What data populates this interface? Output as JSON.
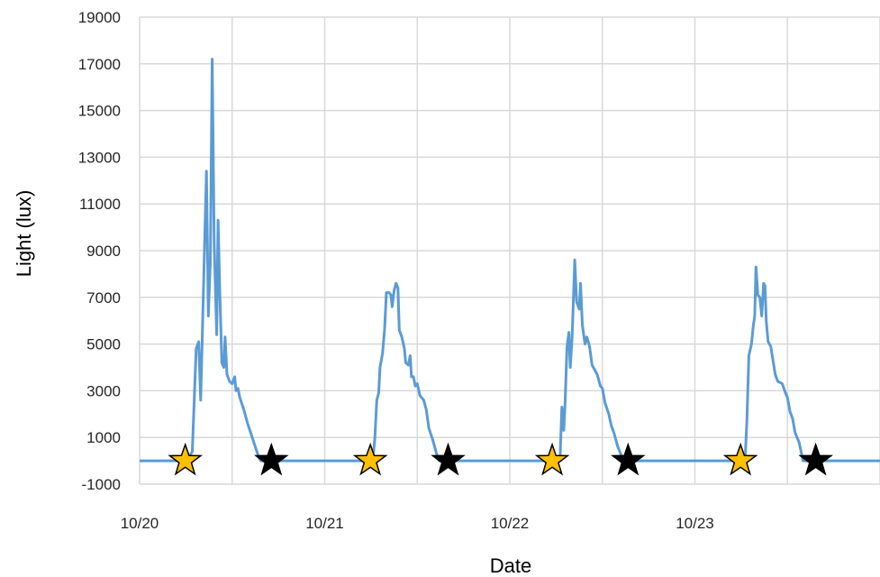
{
  "chart_data": {
    "type": "line",
    "title": "",
    "xlabel": "Date",
    "ylabel": "Light (lux)",
    "ylim": [
      -1000,
      19000
    ],
    "y_ticks": [
      -1000,
      1000,
      3000,
      5000,
      7000,
      9000,
      11000,
      13000,
      15000,
      17000,
      19000
    ],
    "x_range": [
      "2023-10-20T00:00",
      "2023-10-24T00:00"
    ],
    "x_tick_labels": [
      {
        "date": "2023-10-20T00:00",
        "label": "10/20"
      },
      {
        "date": "2023-10-21T00:00",
        "label": "10/21"
      },
      {
        "date": "2023-10-22T00:00",
        "label": "10/22"
      },
      {
        "date": "2023-10-23T00:00",
        "label": "10/23"
      }
    ],
    "grid": true,
    "colors": {
      "line": "#5b9bd5",
      "grid": "#d9d9d9",
      "sunrise_star": "#ffc000",
      "sunset_star": "#000000"
    },
    "series": [
      {
        "points": [
          [
            "2023-10-20T00:00",
            0
          ],
          [
            "2023-10-20T06:10",
            0
          ],
          [
            "2023-10-20T06:50",
            400
          ],
          [
            "2023-10-20T07:20",
            4800
          ],
          [
            "2023-10-20T07:40",
            5100
          ],
          [
            "2023-10-20T07:55",
            2600
          ],
          [
            "2023-10-20T08:40",
            12400
          ],
          [
            "2023-10-20T08:55",
            6200
          ],
          [
            "2023-10-20T09:10",
            8500
          ],
          [
            "2023-10-20T09:25",
            17200
          ],
          [
            "2023-10-20T09:40",
            9300
          ],
          [
            "2023-10-20T10:00",
            5400
          ],
          [
            "2023-10-20T10:10",
            10300
          ],
          [
            "2023-10-20T10:25",
            7000
          ],
          [
            "2023-10-20T10:40",
            4200
          ],
          [
            "2023-10-20T10:55",
            4000
          ],
          [
            "2023-10-20T11:05",
            5300
          ],
          [
            "2023-10-20T11:20",
            3700
          ],
          [
            "2023-10-20T11:40",
            3400
          ],
          [
            "2023-10-20T12:00",
            3300
          ],
          [
            "2023-10-20T12:20",
            3600
          ],
          [
            "2023-10-20T12:30",
            3000
          ],
          [
            "2023-10-20T12:45",
            3100
          ],
          [
            "2023-10-20T13:00",
            2700
          ],
          [
            "2023-10-20T13:30",
            2200
          ],
          [
            "2023-10-20T14:00",
            1600
          ],
          [
            "2023-10-20T14:30",
            1100
          ],
          [
            "2023-10-20T15:00",
            600
          ],
          [
            "2023-10-20T15:30",
            100
          ],
          [
            "2023-10-20T15:45",
            0
          ],
          [
            "2023-10-21T06:15",
            0
          ],
          [
            "2023-10-21T06:30",
            1000
          ],
          [
            "2023-10-21T06:45",
            2600
          ],
          [
            "2023-10-21T07:00",
            2900
          ],
          [
            "2023-10-21T07:10",
            4000
          ],
          [
            "2023-10-21T07:30",
            4600
          ],
          [
            "2023-10-21T07:45",
            5600
          ],
          [
            "2023-10-21T08:00",
            7200
          ],
          [
            "2023-10-21T08:20",
            7200
          ],
          [
            "2023-10-21T08:35",
            7100
          ],
          [
            "2023-10-21T08:45",
            6600
          ],
          [
            "2023-10-21T09:00",
            7300
          ],
          [
            "2023-10-21T09:15",
            7600
          ],
          [
            "2023-10-21T09:30",
            7400
          ],
          [
            "2023-10-21T09:40",
            5600
          ],
          [
            "2023-10-21T10:00",
            5300
          ],
          [
            "2023-10-21T10:20",
            4800
          ],
          [
            "2023-10-21T10:30",
            4200
          ],
          [
            "2023-10-21T10:50",
            4100
          ],
          [
            "2023-10-21T11:05",
            4500
          ],
          [
            "2023-10-21T11:15",
            3600
          ],
          [
            "2023-10-21T11:30",
            3600
          ],
          [
            "2023-10-21T11:45",
            3200
          ],
          [
            "2023-10-21T12:00",
            3300
          ],
          [
            "2023-10-21T12:20",
            2800
          ],
          [
            "2023-10-21T12:50",
            2600
          ],
          [
            "2023-10-21T13:10",
            2200
          ],
          [
            "2023-10-21T13:30",
            1400
          ],
          [
            "2023-10-21T14:00",
            900
          ],
          [
            "2023-10-21T14:30",
            300
          ],
          [
            "2023-10-21T14:50",
            0
          ],
          [
            "2023-10-22T06:30",
            0
          ],
          [
            "2023-10-22T06:45",
            2300
          ],
          [
            "2023-10-22T07:00",
            1300
          ],
          [
            "2023-10-22T07:10",
            2500
          ],
          [
            "2023-10-22T07:25",
            4900
          ],
          [
            "2023-10-22T07:40",
            5500
          ],
          [
            "2023-10-22T07:50",
            4000
          ],
          [
            "2023-10-22T08:05",
            5300
          ],
          [
            "2023-10-22T08:25",
            8600
          ],
          [
            "2023-10-22T08:40",
            6800
          ],
          [
            "2023-10-22T09:00",
            6500
          ],
          [
            "2023-10-22T09:10",
            7600
          ],
          [
            "2023-10-22T09:25",
            5800
          ],
          [
            "2023-10-22T09:45",
            5000
          ],
          [
            "2023-10-22T10:00",
            5300
          ],
          [
            "2023-10-22T10:20",
            4900
          ],
          [
            "2023-10-22T10:40",
            4100
          ],
          [
            "2023-10-22T11:00",
            3900
          ],
          [
            "2023-10-22T11:20",
            3700
          ],
          [
            "2023-10-22T11:45",
            3200
          ],
          [
            "2023-10-22T12:00",
            3100
          ],
          [
            "2023-10-22T12:20",
            2500
          ],
          [
            "2023-10-22T12:50",
            2000
          ],
          [
            "2023-10-22T13:10",
            1500
          ],
          [
            "2023-10-22T13:30",
            1200
          ],
          [
            "2023-10-22T14:00",
            600
          ],
          [
            "2023-10-22T14:30",
            200
          ],
          [
            "2023-10-22T14:45",
            0
          ],
          [
            "2023-10-23T06:30",
            0
          ],
          [
            "2023-10-23T06:45",
            1800
          ],
          [
            "2023-10-23T07:00",
            4500
          ],
          [
            "2023-10-23T07:20",
            5000
          ],
          [
            "2023-10-23T07:35",
            5800
          ],
          [
            "2023-10-23T07:45",
            6200
          ],
          [
            "2023-10-23T07:55",
            8300
          ],
          [
            "2023-10-23T08:10",
            7100
          ],
          [
            "2023-10-23T08:25",
            7000
          ],
          [
            "2023-10-23T08:40",
            6200
          ],
          [
            "2023-10-23T08:55",
            7600
          ],
          [
            "2023-10-23T09:05",
            7500
          ],
          [
            "2023-10-23T09:15",
            6000
          ],
          [
            "2023-10-23T09:30",
            5100
          ],
          [
            "2023-10-23T09:50",
            4900
          ],
          [
            "2023-10-23T10:10",
            4200
          ],
          [
            "2023-10-23T10:25",
            3700
          ],
          [
            "2023-10-23T10:45",
            3400
          ],
          [
            "2023-10-23T11:20",
            3300
          ],
          [
            "2023-10-23T11:45",
            2900
          ],
          [
            "2023-10-23T12:00",
            2700
          ],
          [
            "2023-10-23T12:20",
            2100
          ],
          [
            "2023-10-23T12:40",
            1800
          ],
          [
            "2023-10-23T13:00",
            1200
          ],
          [
            "2023-10-23T13:30",
            800
          ],
          [
            "2023-10-23T13:50",
            300
          ],
          [
            "2023-10-23T14:00",
            0
          ],
          [
            "2023-10-24T00:00",
            0
          ]
        ]
      }
    ],
    "markers": [
      {
        "date": "2023-10-20T05:55",
        "y": 0,
        "shape": "star",
        "color": "#ffc000"
      },
      {
        "date": "2023-10-20T17:05",
        "y": 0,
        "shape": "star",
        "color": "#000000"
      },
      {
        "date": "2023-10-21T05:55",
        "y": 0,
        "shape": "star",
        "color": "#ffc000"
      },
      {
        "date": "2023-10-21T16:00",
        "y": 0,
        "shape": "star",
        "color": "#000000"
      },
      {
        "date": "2023-10-22T05:30",
        "y": 0,
        "shape": "star",
        "color": "#ffc000"
      },
      {
        "date": "2023-10-22T15:20",
        "y": 0,
        "shape": "star",
        "color": "#000000"
      },
      {
        "date": "2023-10-23T05:55",
        "y": 0,
        "shape": "star",
        "color": "#ffc000"
      },
      {
        "date": "2023-10-23T15:40",
        "y": 0,
        "shape": "star",
        "color": "#000000"
      }
    ]
  }
}
